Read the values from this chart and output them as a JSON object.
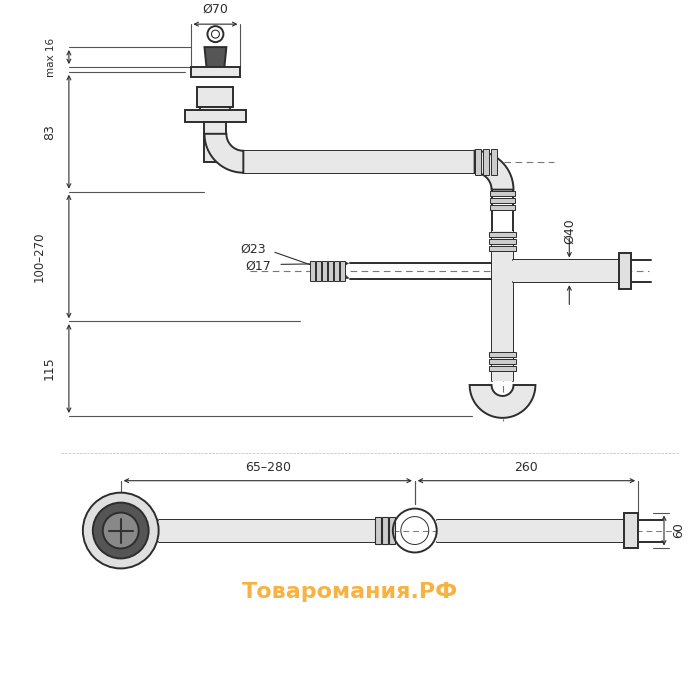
{
  "title": "",
  "bg_color": "#ffffff",
  "line_color": "#2d2d2d",
  "dim_color": "#2d2d2d",
  "orange_color": "#f5a623",
  "watermark": "Товаромания.РФ",
  "dims": {
    "d70": "Ø70",
    "max16": "max 16",
    "dim83": "83",
    "dim100_270": "100–270",
    "dim115": "115",
    "d23": "Ø23",
    "d17": "Ø17",
    "d40": "Ø40",
    "dim65_280": "65–280",
    "dim260": "260",
    "dim60": "60"
  }
}
